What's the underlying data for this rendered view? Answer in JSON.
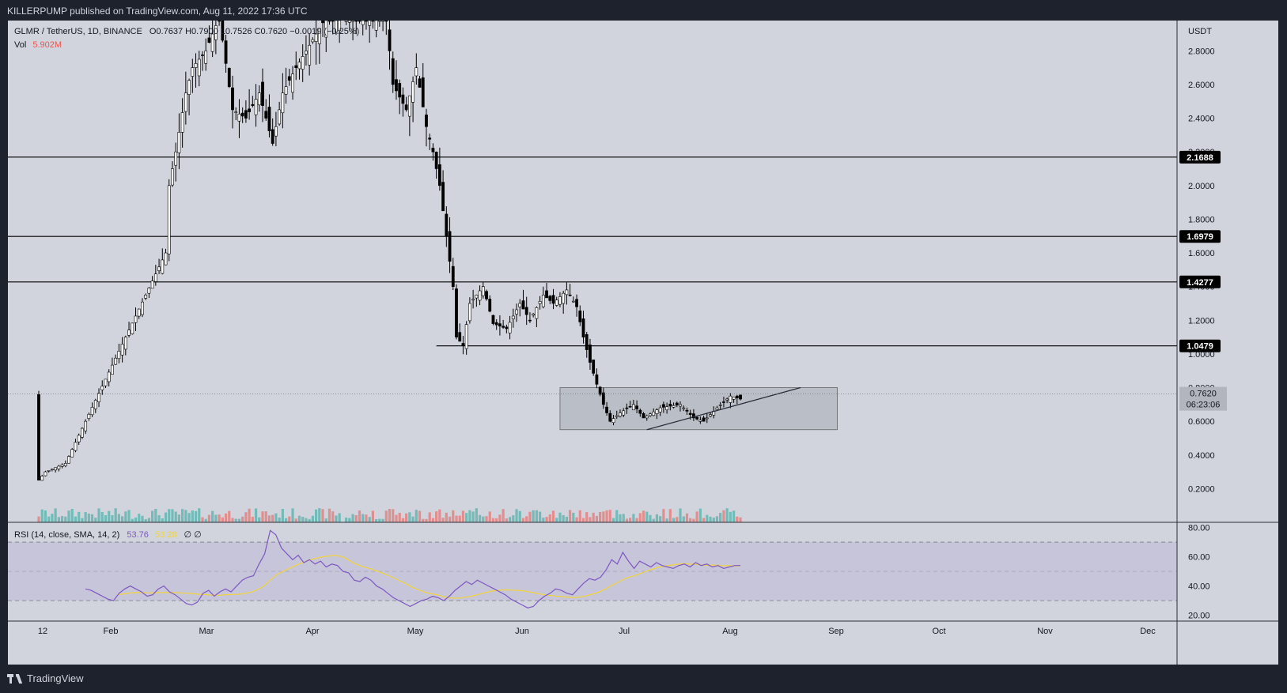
{
  "header": {
    "publisher": "KILLERPUMP published on TradingView.com, Aug 11, 2022 17:36 UTC"
  },
  "footer": {
    "brand": "TradingView"
  },
  "legend": {
    "symbol": "GLMR / TetherUS, 1D, BINANCE",
    "ohlc": "O0.7637  H0.7900  L0.7526  C0.7620  −0.0019 (−0.25%)",
    "vol_label": "Vol",
    "vol_value": "5.902M",
    "rsi_label": "RSI (14, close, SMA, 14, 2)",
    "rsi_value": "53.76",
    "rsi_sma_value": "53.28",
    "rsi_extra": "∅  ∅"
  },
  "colors": {
    "background": "#d1d4dc",
    "up": "#26a69a",
    "down": "#ef5350",
    "candle": "#000000",
    "rsi_line": "#7e57c2",
    "rsi_sma": "#f2d43b"
  },
  "chart_data": {
    "type": "candlestick",
    "currency": "USDT",
    "price_axis_ticks": [
      "2.8000",
      "2.6000",
      "2.4000",
      "2.2000",
      "2.0000",
      "1.8000",
      "1.6000",
      "1.4000",
      "1.2000",
      "1.0000",
      "0.8000",
      "0.6000",
      "0.4000",
      "0.2000"
    ],
    "price_range": [
      0,
      2.98
    ],
    "time_axis_labels": [
      "12",
      "Feb",
      "Mar",
      "Apr",
      "May",
      "Jun",
      "Jul",
      "Aug",
      "Sep",
      "Oct",
      "Nov",
      "Dec"
    ],
    "horizontal_levels": [
      {
        "price": 2.1688,
        "label": "2.1688"
      },
      {
        "price": 1.6979,
        "label": "1.6979"
      },
      {
        "price": 1.4277,
        "label": "1.4277"
      },
      {
        "price": 1.0479,
        "label": "1.0479"
      }
    ],
    "last_price": {
      "price": 0.762,
      "label": "0.7620",
      "countdown": "06:23:06"
    },
    "range_box": {
      "from": "2022-06-17",
      "to": "2022-09-08",
      "top": 0.8,
      "bottom": 0.55
    },
    "trendline": {
      "from": [
        "2022-07-13",
        0.55
      ],
      "to": [
        "2022-08-28",
        0.8
      ]
    },
    "rsi": {
      "ticks": [
        "80.00",
        "60.00",
        "40.00",
        "20.00"
      ],
      "range": [
        16,
        83
      ],
      "band_upper": 70,
      "band_lower": 30,
      "mid": 50,
      "values": [
        38,
        37,
        35,
        33,
        31,
        30,
        35,
        38,
        40,
        38,
        36,
        33,
        34,
        38,
        40,
        36,
        34,
        31,
        28,
        27,
        29,
        35,
        37,
        33,
        36,
        38,
        36,
        40,
        44,
        46,
        47,
        55,
        62,
        78,
        75,
        66,
        62,
        58,
        61,
        56,
        58,
        55,
        57,
        53,
        55,
        54,
        50,
        49,
        44,
        43,
        46,
        44,
        40,
        38,
        35,
        32,
        30,
        28,
        26,
        28,
        30,
        31,
        33,
        32,
        30,
        33,
        37,
        40,
        43,
        41,
        44,
        42,
        40,
        38,
        36,
        34,
        31,
        29,
        27,
        25,
        26,
        30,
        33,
        35,
        38,
        37,
        35,
        34,
        38,
        42,
        45,
        44,
        46,
        51,
        58,
        55,
        63,
        57,
        52,
        57,
        55,
        53,
        56,
        54,
        53,
        52,
        54,
        55,
        53,
        56,
        54,
        55,
        53,
        54,
        52,
        53,
        54,
        54
      ]
    }
  }
}
